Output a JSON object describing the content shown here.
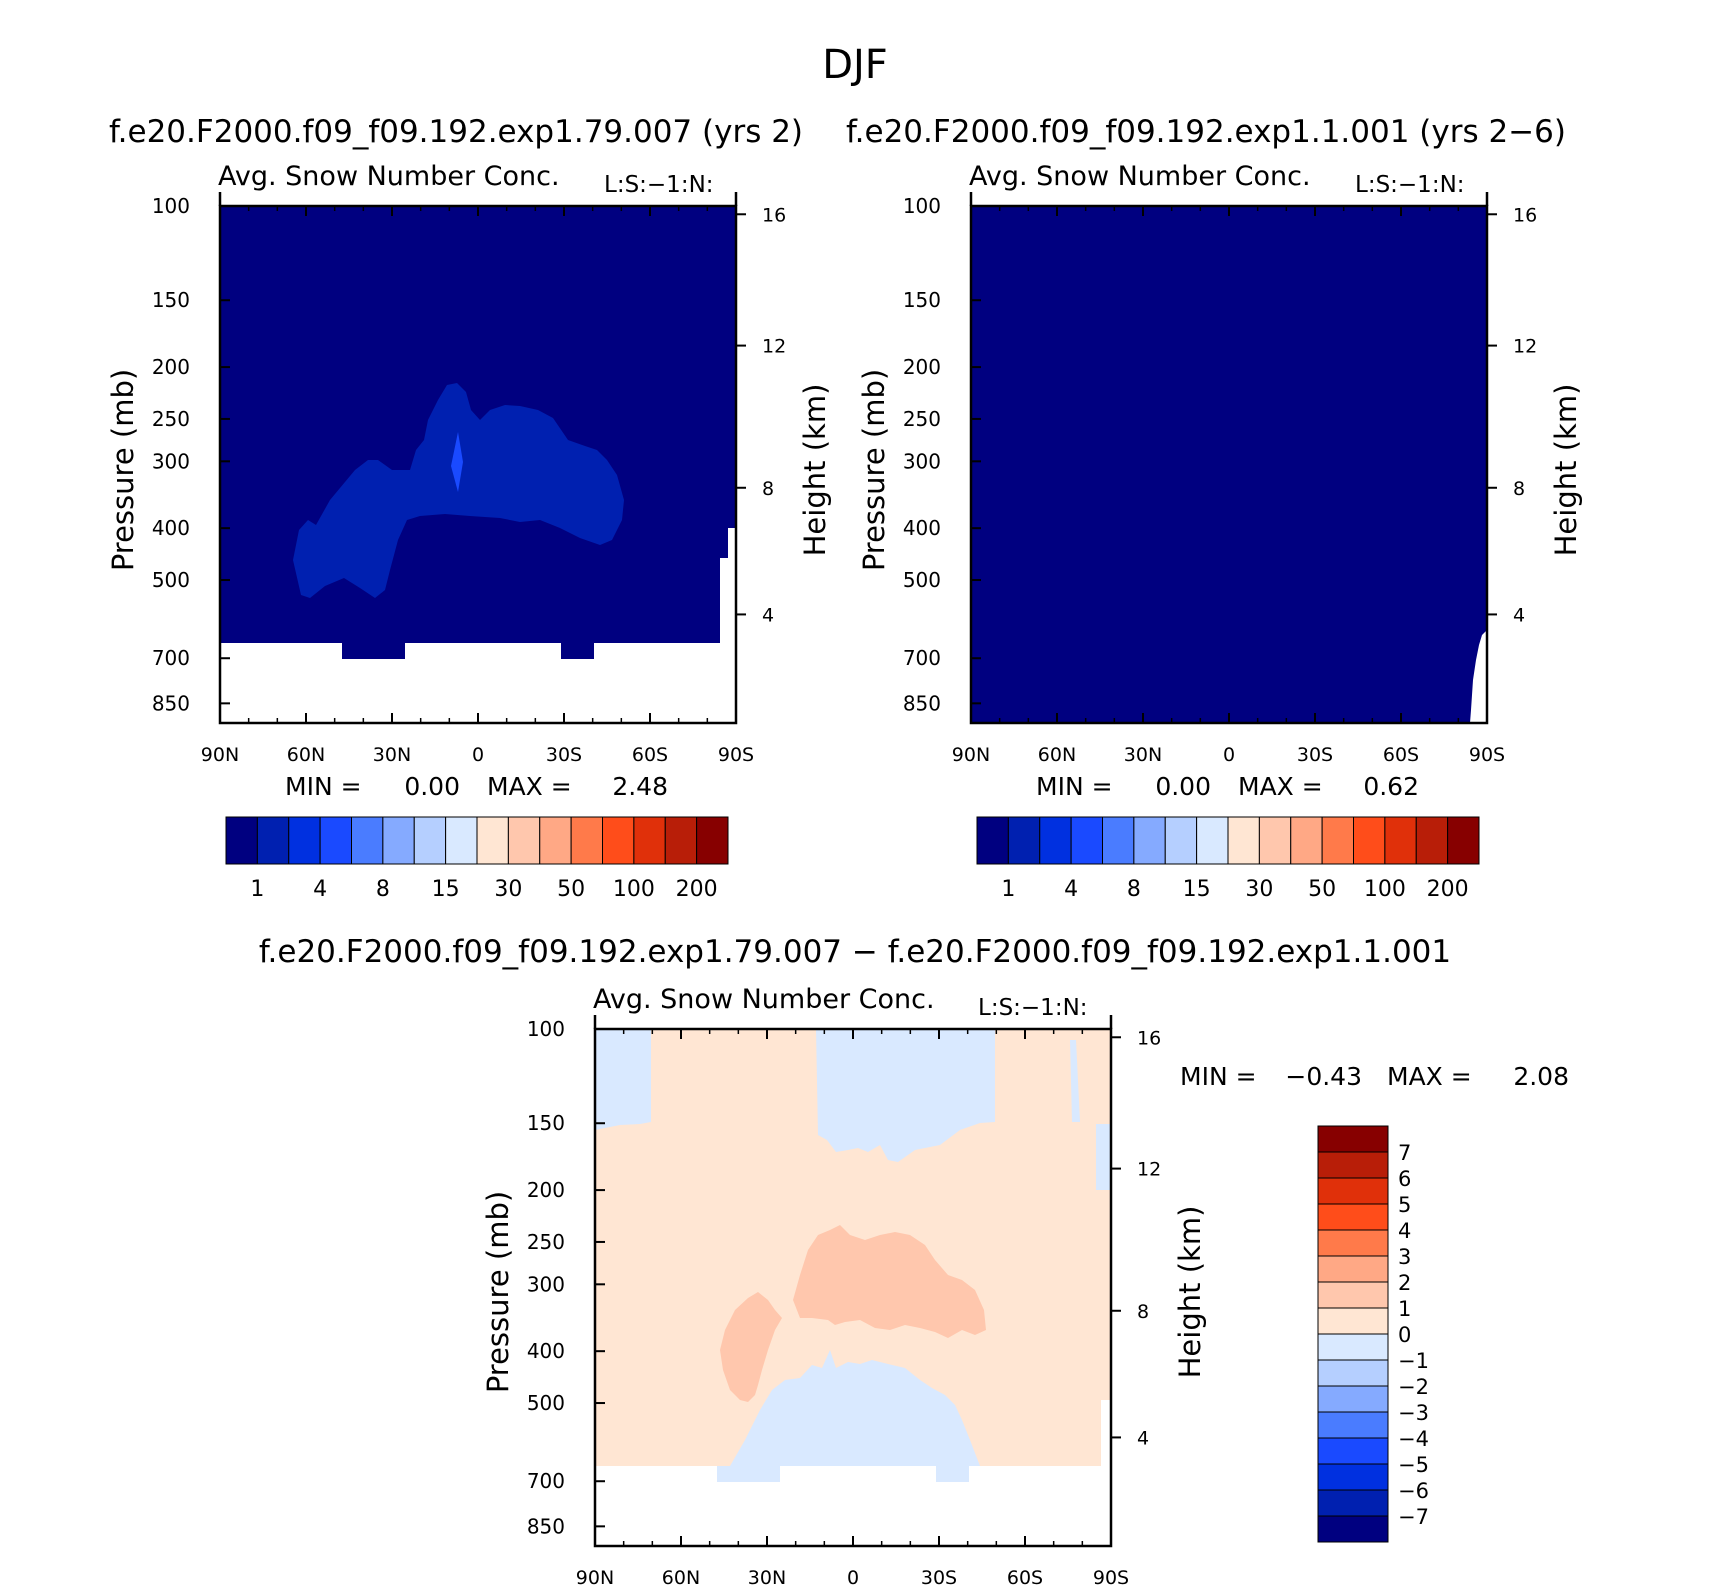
{
  "page": {
    "title": "DJF"
  },
  "colors": {
    "panel_scale": [
      "#000080",
      "#0020b0",
      "#0030e0",
      "#1a4aff",
      "#4a7cff",
      "#85aaff",
      "#b5cfff",
      "#d9e9ff",
      "#ffe6d3",
      "#ffc7ad",
      "#ffa885",
      "#ff7a4a",
      "#ff4d1a",
      "#e0300a",
      "#b81e08",
      "#870000"
    ],
    "diff_scale": [
      "#000080",
      "#0020b0",
      "#0030e0",
      "#1a4aff",
      "#4a7cff",
      "#85aaff",
      "#b5cfff",
      "#d9e9ff",
      "#ffe6d3",
      "#ffc7ad",
      "#ffa885",
      "#ff7a4a",
      "#ff4d1a",
      "#e0300a",
      "#b81e08",
      "#870000"
    ],
    "background": "#000080",
    "level1": "#0020b0",
    "level2": "#1a4aff",
    "diff_bg": "#ffe6d3",
    "diff_neg": "#d9e9ff",
    "diff_pos": "#ffc7ad"
  },
  "chart_data": [
    {
      "id": "panel_left",
      "type": "heatmap",
      "case_title": "f.e20.F2000.f09_f09.192.exp1.79.007 (yrs 2)",
      "title": "Avg. Snow Number Conc.",
      "units": "L:S:−1:N:",
      "ylabel": "Pressure (mb)",
      "ylabel_right": "Height (km)",
      "xticks": [
        "90N",
        "60N",
        "30N",
        "0",
        "30S",
        "60S",
        "90S"
      ],
      "yticks": [
        "100",
        "150",
        "200",
        "250",
        "300",
        "400",
        "500",
        "700",
        "850"
      ],
      "yticks_right": [
        "16",
        "12",
        "8",
        "4"
      ],
      "stats": {
        "min_label": "MIN =",
        "min": "0.00",
        "max_label": "MAX =",
        "max": "2.48"
      },
      "colorbar_labels": [
        "1",
        "4",
        "8",
        "15",
        "30",
        "50",
        "100",
        "200"
      ],
      "xlim": [
        90,
        -90
      ],
      "ylim": [
        100,
        850
      ],
      "value_range": [
        0.0,
        2.48
      ]
    },
    {
      "id": "panel_right",
      "type": "heatmap",
      "case_title": "f.e20.F2000.f09_f09.192.exp1.1.001 (yrs 2−6)",
      "title": "Avg. Snow Number Conc.",
      "units": "L:S:−1:N:",
      "ylabel": "Pressure (mb)",
      "ylabel_right": "Height (km)",
      "xticks": [
        "90N",
        "60N",
        "30N",
        "0",
        "30S",
        "60S",
        "90S"
      ],
      "yticks": [
        "100",
        "150",
        "200",
        "250",
        "300",
        "400",
        "500",
        "700",
        "850"
      ],
      "yticks_right": [
        "16",
        "12",
        "8",
        "4"
      ],
      "stats": {
        "min_label": "MIN =",
        "min": "0.00",
        "max_label": "MAX =",
        "max": "0.62"
      },
      "colorbar_labels": [
        "1",
        "4",
        "8",
        "15",
        "30",
        "50",
        "100",
        "200"
      ],
      "xlim": [
        90,
        -90
      ],
      "ylim": [
        100,
        850
      ],
      "value_range": [
        0.0,
        0.62
      ]
    },
    {
      "id": "panel_diff",
      "type": "heatmap",
      "case_title": "f.e20.F2000.f09_f09.192.exp1.79.007 − f.e20.F2000.f09_f09.192.exp1.1.001",
      "title": "Avg. Snow Number Conc.",
      "units": "L:S:−1:N:",
      "ylabel": "Pressure (mb)",
      "ylabel_right": "Height (km)",
      "xticks": [
        "90N",
        "60N",
        "30N",
        "0",
        "30S",
        "60S",
        "90S"
      ],
      "yticks": [
        "100",
        "150",
        "200",
        "250",
        "300",
        "400",
        "500",
        "700",
        "850"
      ],
      "yticks_right": [
        "16",
        "12",
        "8",
        "4"
      ],
      "stats": {
        "min_label": "MIN =",
        "min": "−0.43",
        "max_label": "MAX =",
        "max": "2.08"
      },
      "colorbar_labels": [
        "7",
        "6",
        "5",
        "4",
        "3",
        "2",
        "1",
        "0",
        "−1",
        "−2",
        "−3",
        "−4",
        "−5",
        "−6",
        "−7"
      ],
      "xlim": [
        90,
        -90
      ],
      "ylim": [
        100,
        850
      ],
      "value_range": [
        -0.43,
        2.08
      ]
    }
  ]
}
